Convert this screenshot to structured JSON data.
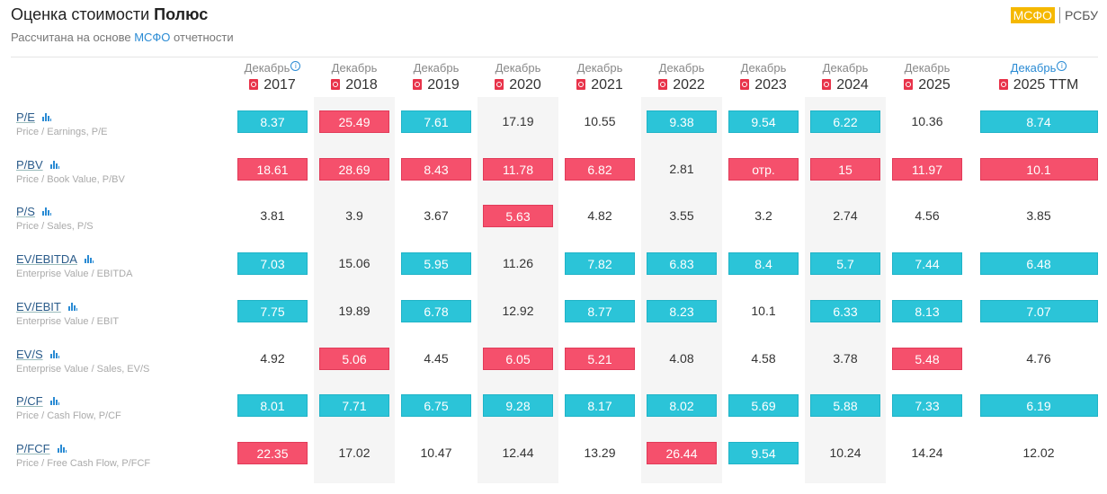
{
  "header": {
    "title_prefix": "Оценка стоимости",
    "title_company": "Полюс",
    "subtitle_prefix": "Рассчитана на основе",
    "subtitle_link": "МСФО",
    "subtitle_suffix": "отчетности"
  },
  "standards": {
    "active": "МСФО",
    "other": "РСБУ"
  },
  "colors": {
    "good": "#2bc4d8",
    "bad": "#f5506c",
    "accent": "#2a8bd4",
    "badge": "#f5b800"
  },
  "columns": [
    {
      "month": "Декабрь",
      "year": "2017",
      "info": true
    },
    {
      "month": "Декабрь",
      "year": "2018",
      "info": false
    },
    {
      "month": "Декабрь",
      "year": "2019",
      "info": false
    },
    {
      "month": "Декабрь",
      "year": "2020",
      "info": false
    },
    {
      "month": "Декабрь",
      "year": "2021",
      "info": false
    },
    {
      "month": "Декабрь",
      "year": "2022",
      "info": false
    },
    {
      "month": "Декабрь",
      "year": "2023",
      "info": false
    },
    {
      "month": "Декабрь",
      "year": "2024",
      "info": false
    },
    {
      "month": "Декабрь",
      "year": "2025",
      "info": false
    },
    {
      "month": "Декабрь",
      "year": "2025 TTM",
      "info": true,
      "highlight": true
    }
  ],
  "rows": [
    {
      "name": "P/E",
      "desc": "Price / Earnings, P/E",
      "values": [
        "8.37",
        "25.49",
        "7.61",
        "17.19",
        "10.55",
        "9.38",
        "9.54",
        "6.22",
        "10.36",
        "8.74"
      ],
      "status": [
        "good",
        "bad",
        "good",
        "none",
        "none",
        "good",
        "good",
        "good",
        "none",
        "good"
      ]
    },
    {
      "name": "P/BV",
      "desc": "Price / Book Value, P/BV",
      "values": [
        "18.61",
        "28.69",
        "8.43",
        "11.78",
        "6.82",
        "2.81",
        "отр.",
        "15",
        "11.97",
        "10.1"
      ],
      "status": [
        "bad",
        "bad",
        "bad",
        "bad",
        "bad",
        "none",
        "bad",
        "bad",
        "bad",
        "bad"
      ]
    },
    {
      "name": "P/S",
      "desc": "Price / Sales, P/S",
      "values": [
        "3.81",
        "3.9",
        "3.67",
        "5.63",
        "4.82",
        "3.55",
        "3.2",
        "2.74",
        "4.56",
        "3.85"
      ],
      "status": [
        "none",
        "none",
        "none",
        "bad",
        "none",
        "none",
        "none",
        "none",
        "none",
        "none"
      ]
    },
    {
      "name": "EV/EBITDA",
      "desc": "Enterprise Value / EBITDA",
      "values": [
        "7.03",
        "15.06",
        "5.95",
        "11.26",
        "7.82",
        "6.83",
        "8.4",
        "5.7",
        "7.44",
        "6.48"
      ],
      "status": [
        "good",
        "none",
        "good",
        "none",
        "good",
        "good",
        "good",
        "good",
        "good",
        "good"
      ]
    },
    {
      "name": "EV/EBIT",
      "desc": "Enterprise Value / EBIT",
      "values": [
        "7.75",
        "19.89",
        "6.78",
        "12.92",
        "8.77",
        "8.23",
        "10.1",
        "6.33",
        "8.13",
        "7.07"
      ],
      "status": [
        "good",
        "none",
        "good",
        "none",
        "good",
        "good",
        "none",
        "good",
        "good",
        "good"
      ]
    },
    {
      "name": "EV/S",
      "desc": "Enterprise Value / Sales, EV/S",
      "values": [
        "4.92",
        "5.06",
        "4.45",
        "6.05",
        "5.21",
        "4.08",
        "4.58",
        "3.78",
        "5.48",
        "4.76"
      ],
      "status": [
        "none",
        "bad",
        "none",
        "bad",
        "bad",
        "none",
        "none",
        "none",
        "bad",
        "none"
      ]
    },
    {
      "name": "P/CF",
      "desc": "Price / Cash Flow, P/CF",
      "values": [
        "8.01",
        "7.71",
        "6.75",
        "9.28",
        "8.17",
        "8.02",
        "5.69",
        "5.88",
        "7.33",
        "6.19"
      ],
      "status": [
        "good",
        "good",
        "good",
        "good",
        "good",
        "good",
        "good",
        "good",
        "good",
        "good"
      ]
    },
    {
      "name": "P/FCF",
      "desc": "Price / Free Cash Flow, P/FCF",
      "values": [
        "22.35",
        "17.02",
        "10.47",
        "12.44",
        "13.29",
        "26.44",
        "9.54",
        "10.24",
        "14.24",
        "12.02"
      ],
      "status": [
        "bad",
        "none",
        "none",
        "none",
        "none",
        "bad",
        "good",
        "none",
        "none",
        "none"
      ]
    }
  ]
}
